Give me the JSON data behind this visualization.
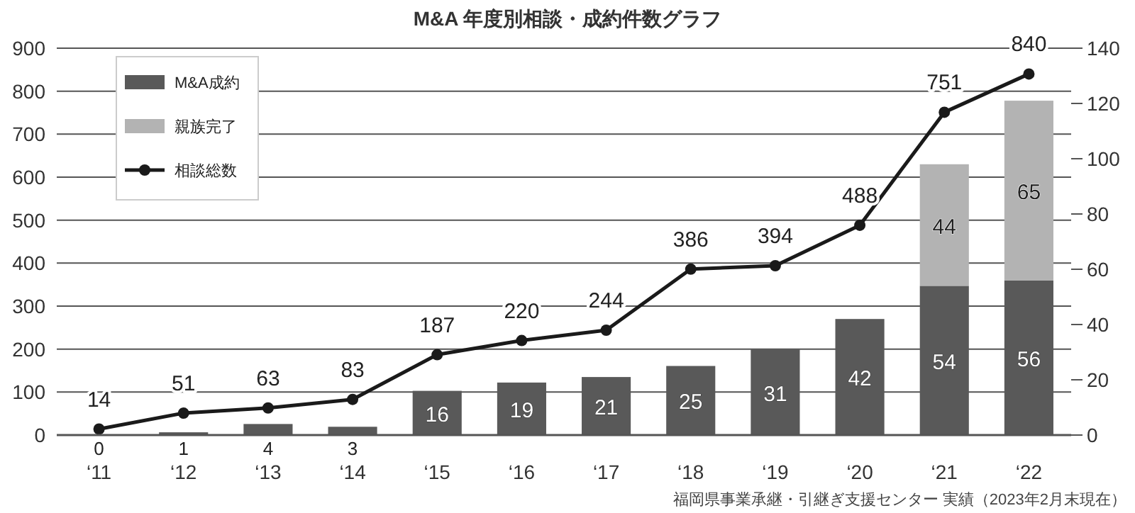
{
  "chart_data": {
    "type": "bar",
    "title": "M&A 年度別相談・成約件数グラフ",
    "categories": [
      "‘11",
      "‘12",
      "‘13",
      "‘14",
      "‘15",
      "‘16",
      "‘17",
      "‘18",
      "‘19",
      "‘20",
      "‘21",
      "‘22"
    ],
    "series": [
      {
        "name": "M&A成約",
        "color": "#595959",
        "axis": "y2",
        "values": [
          0,
          1,
          4,
          3,
          16,
          19,
          21,
          25,
          31,
          42,
          54,
          56
        ]
      },
      {
        "name": "親族完了",
        "color": "#b3b3b3",
        "axis": "y2",
        "values": [
          null,
          null,
          null,
          null,
          null,
          null,
          null,
          null,
          null,
          null,
          44,
          65
        ]
      },
      {
        "name": "相談総数",
        "type": "line",
        "color": "#1a1a1a",
        "values": [
          14,
          51,
          63,
          83,
          187,
          220,
          244,
          386,
          394,
          488,
          751,
          840
        ]
      }
    ],
    "stacked": true,
    "marker": "circle",
    "line_style": "solid",
    "ylim": [
      0,
      900
    ],
    "yticks": [
      0,
      100,
      200,
      300,
      400,
      500,
      600,
      700,
      800,
      900
    ],
    "y2lim": [
      0,
      140
    ],
    "y2ticks": [
      0,
      20,
      40,
      60,
      80,
      100,
      120,
      140
    ],
    "grid": "y",
    "legend": "top left",
    "data_labels": true,
    "annotations": [
      "福岡県事業承継・引継ぎ支援センター 実績（2023年2月末現在）"
    ]
  }
}
